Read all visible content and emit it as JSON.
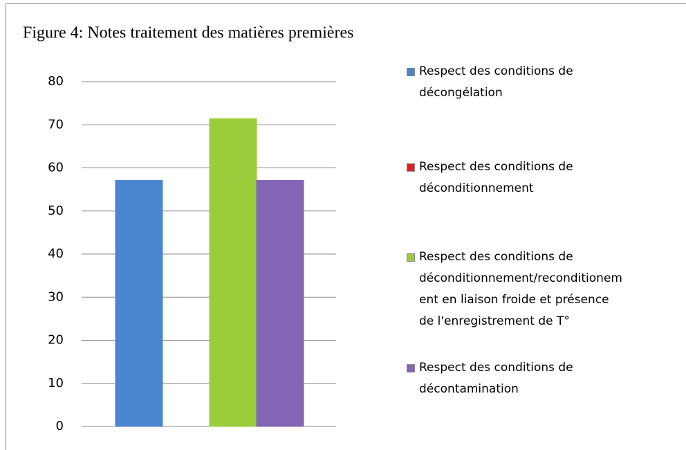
{
  "chart_data": {
    "type": "bar",
    "title": "Figure 4: Notes traitement des matières premières",
    "series": [
      {
        "name": "Respect des conditions de décongélation",
        "color": "#4a86d0",
        "values": [
          57.1
        ]
      },
      {
        "name": "Respect des conditions de déconditionnement",
        "color": "#e02020",
        "values": [
          0
        ]
      },
      {
        "name": "Respect des conditions de déconditionnement/reconditionement en liaison froide et présence de l'enregistrement de T°",
        "color": "#9acd3c",
        "values": [
          71.4
        ]
      },
      {
        "name": "Respect des conditions de décontamination",
        "color": "#8464b4",
        "values": [
          57.1
        ]
      }
    ],
    "ylim": [
      0,
      80
    ],
    "yticks": [
      0,
      10,
      20,
      30,
      40,
      50,
      60,
      70,
      80
    ],
    "grid": true,
    "legend": "right"
  }
}
